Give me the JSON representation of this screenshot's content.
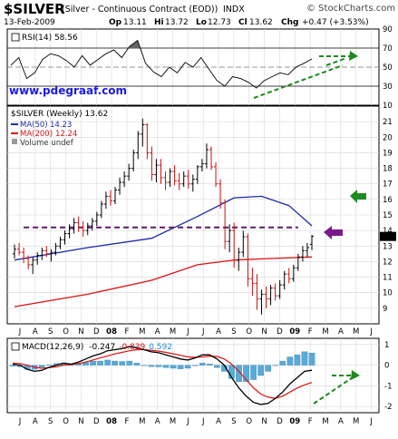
{
  "header": {
    "symbol": "$SILVER",
    "description": "(Silver - Continuous Contract (EOD))",
    "exchange": "INDX",
    "copyright": "© StockCharts.com",
    "date": "13-Feb-2009",
    "op_label": "Op",
    "op": "13.11",
    "hi_label": "Hi",
    "hi": "13.72",
    "lo_label": "Lo",
    "lo": "12.73",
    "cl_label": "Cl",
    "cl": "13.62",
    "chg_label": "Chg",
    "chg": "+0.47 (+3.53%)"
  },
  "watermark": "www.pdegraaf.com",
  "chart_data": [
    {
      "type": "line",
      "title": "RSI(14) 58.56",
      "ylim": [
        10,
        90
      ],
      "y_ticks": [
        "90",
        "70",
        "50",
        "30",
        "10"
      ],
      "reference_lines": [
        70,
        50,
        30
      ],
      "x": [
        "2007-07",
        "2007-07",
        "2007-08",
        "2007-08",
        "2007-09",
        "2007-09",
        "2007-10",
        "2007-10",
        "2007-11",
        "2007-11",
        "2007-12",
        "2007-12",
        "2008-01",
        "2008-01",
        "2008-02",
        "2008-02",
        "2008-03",
        "2008-03",
        "2008-04",
        "2008-04",
        "2008-05",
        "2008-05",
        "2008-06",
        "2008-06",
        "2008-07",
        "2008-07",
        "2008-08",
        "2008-08",
        "2008-09",
        "2008-09",
        "2008-10",
        "2008-10",
        "2008-11",
        "2008-11",
        "2008-12",
        "2008-12",
        "2009-01",
        "2009-01",
        "2009-02"
      ],
      "values": [
        52,
        60,
        38,
        44,
        58,
        64,
        62,
        57,
        50,
        62,
        52,
        58,
        64,
        68,
        60,
        72,
        78,
        54,
        45,
        40,
        50,
        44,
        55,
        50,
        60,
        48,
        36,
        30,
        40,
        38,
        34,
        28,
        36,
        40,
        44,
        42,
        50,
        54,
        58.56
      ]
    },
    {
      "type": "bar",
      "title": "$SILVER (Weekly) 13.62",
      "ylim": [
        8,
        22
      ],
      "y_ticks": [
        "21",
        "20",
        "19",
        "18",
        "17",
        "16",
        "15",
        "14",
        "13",
        "12",
        "11",
        "10",
        "9"
      ],
      "legend": [
        {
          "name": "$SILVER (Weekly)",
          "value": "13.62",
          "color": "#000000"
        },
        {
          "name": "MA(50)",
          "value": "14.23",
          "color": "#1f2aa8"
        },
        {
          "name": "MA(200)",
          "value": "12.24",
          "color": "#dd1111"
        },
        {
          "name": "Volume undef",
          "value": "",
          "color": "#666666"
        }
      ],
      "resistance_line": 14.2,
      "ohlc": [
        [
          12.5,
          13.1,
          12.2,
          12.8
        ],
        [
          12.8,
          13.2,
          12.4,
          12.6
        ],
        [
          12.6,
          12.9,
          11.9,
          12.2
        ],
        [
          12.2,
          12.4,
          11.5,
          11.8
        ],
        [
          11.8,
          12.3,
          11.2,
          12.1
        ],
        [
          12.1,
          12.6,
          11.8,
          12.4
        ],
        [
          12.4,
          12.9,
          12.1,
          12.7
        ],
        [
          12.7,
          13.0,
          12.3,
          12.5
        ],
        [
          12.5,
          12.8,
          12.0,
          12.6
        ],
        [
          12.6,
          13.2,
          12.4,
          13.0
        ],
        [
          13.0,
          13.6,
          12.8,
          13.4
        ],
        [
          13.4,
          14.0,
          13.1,
          13.8
        ],
        [
          13.8,
          14.4,
          13.5,
          14.1
        ],
        [
          14.1,
          14.8,
          13.8,
          14.5
        ],
        [
          14.5,
          14.9,
          13.9,
          14.2
        ],
        [
          14.2,
          14.6,
          13.6,
          14.0
        ],
        [
          14.0,
          14.5,
          13.7,
          14.3
        ],
        [
          14.3,
          14.8,
          14.0,
          14.6
        ],
        [
          14.6,
          15.2,
          14.3,
          15.0
        ],
        [
          15.0,
          15.9,
          14.8,
          15.7
        ],
        [
          15.7,
          16.5,
          15.4,
          16.2
        ],
        [
          16.2,
          16.6,
          15.6,
          15.9
        ],
        [
          15.9,
          16.8,
          15.7,
          16.6
        ],
        [
          16.6,
          17.4,
          16.3,
          17.1
        ],
        [
          17.1,
          17.8,
          16.8,
          17.5
        ],
        [
          17.5,
          18.3,
          17.2,
          18.0
        ],
        [
          18.0,
          19.2,
          17.8,
          19.0
        ],
        [
          19.0,
          20.4,
          18.6,
          20.2
        ],
        [
          20.2,
          21.2,
          19.4,
          20.8
        ],
        [
          20.8,
          20.9,
          18.6,
          19.0
        ],
        [
          19.0,
          19.4,
          17.2,
          17.6
        ],
        [
          17.6,
          18.6,
          17.1,
          18.2
        ],
        [
          18.2,
          18.6,
          17.0,
          17.4
        ],
        [
          17.4,
          17.8,
          16.6,
          17.1
        ],
        [
          17.1,
          18.0,
          16.8,
          17.8
        ],
        [
          17.8,
          18.2,
          16.9,
          17.2
        ],
        [
          17.2,
          17.7,
          16.6,
          17.0
        ],
        [
          17.0,
          17.8,
          16.8,
          17.5
        ],
        [
          17.5,
          17.9,
          16.7,
          17.0
        ],
        [
          17.0,
          17.6,
          16.5,
          17.3
        ],
        [
          17.3,
          18.2,
          17.0,
          18.1
        ],
        [
          18.1,
          18.6,
          17.8,
          18.3
        ],
        [
          18.3,
          19.6,
          18.0,
          19.2
        ],
        [
          19.2,
          19.4,
          17.9,
          18.1
        ],
        [
          18.1,
          18.4,
          16.8,
          17.0
        ],
        [
          17.0,
          17.3,
          15.4,
          15.8
        ],
        [
          15.8,
          16.0,
          12.8,
          13.3
        ],
        [
          13.3,
          14.4,
          12.6,
          14.0
        ],
        [
          14.0,
          14.5,
          11.6,
          12.1
        ],
        [
          12.1,
          12.9,
          11.4,
          12.6
        ],
        [
          12.6,
          14.0,
          12.3,
          13.6
        ],
        [
          13.6,
          13.8,
          10.4,
          10.9
        ],
        [
          10.9,
          11.6,
          9.8,
          10.6
        ],
        [
          10.6,
          11.2,
          8.9,
          9.6
        ],
        [
          9.6,
          10.2,
          8.6,
          9.9
        ],
        [
          9.9,
          10.4,
          9.0,
          9.6
        ],
        [
          9.6,
          10.5,
          9.2,
          10.3
        ],
        [
          10.3,
          10.6,
          9.5,
          9.8
        ],
        [
          9.8,
          10.8,
          9.6,
          10.5
        ],
        [
          10.5,
          11.4,
          10.2,
          11.2
        ],
        [
          11.2,
          11.6,
          10.6,
          10.9
        ],
        [
          10.9,
          11.8,
          10.7,
          11.6
        ],
        [
          11.6,
          12.5,
          11.4,
          12.3
        ],
        [
          12.3,
          13.0,
          12.0,
          12.7
        ],
        [
          12.7,
          13.2,
          12.3,
          12.9
        ],
        [
          13.11,
          13.72,
          12.73,
          13.62
        ]
      ],
      "ma50": [
        [
          0,
          12.1
        ],
        [
          16,
          12.9
        ],
        [
          30,
          13.5
        ],
        [
          40,
          14.9
        ],
        [
          48,
          16.1
        ],
        [
          54,
          16.2
        ],
        [
          60,
          15.6
        ],
        [
          65,
          14.3
        ]
      ],
      "ma200": [
        [
          0,
          9.1
        ],
        [
          16,
          9.9
        ],
        [
          30,
          10.8
        ],
        [
          40,
          11.8
        ],
        [
          48,
          12.1
        ],
        [
          56,
          12.2
        ],
        [
          65,
          12.3
        ]
      ]
    },
    {
      "type": "line",
      "title": "MACD(12,26,9)",
      "title_values": [
        {
          "text": "-0.247",
          "color": "#000000"
        },
        {
          "text": "-0.839",
          "color": "#dd1111"
        },
        {
          "text": "0.592",
          "color": "#2b8ccb"
        }
      ],
      "ylim": [
        -2.3,
        1.3
      ],
      "y_ticks": [
        "1",
        "0",
        "-1",
        "-2"
      ],
      "macd": [
        0.05,
        0.0,
        -0.2,
        -0.3,
        -0.25,
        -0.1,
        0.0,
        0.1,
        0.05,
        0.15,
        0.3,
        0.45,
        0.55,
        0.7,
        0.75,
        0.8,
        0.9,
        0.85,
        0.75,
        0.65,
        0.6,
        0.5,
        0.4,
        0.3,
        0.25,
        0.35,
        0.5,
        0.5,
        0.3,
        0.0,
        -0.6,
        -1.1,
        -1.5,
        -1.8,
        -1.9,
        -1.85,
        -1.6,
        -1.3,
        -0.9,
        -0.6,
        -0.3,
        -0.247
      ],
      "signal": [
        0.1,
        0.08,
        0.0,
        -0.1,
        -0.15,
        -0.12,
        -0.08,
        0.0,
        0.03,
        0.08,
        0.15,
        0.25,
        0.35,
        0.45,
        0.55,
        0.62,
        0.7,
        0.75,
        0.75,
        0.72,
        0.68,
        0.62,
        0.55,
        0.48,
        0.4,
        0.38,
        0.4,
        0.44,
        0.42,
        0.3,
        0.05,
        -0.3,
        -0.7,
        -1.1,
        -1.4,
        -1.55,
        -1.6,
        -1.5,
        -1.3,
        -1.1,
        -0.95,
        -0.839
      ],
      "histogram": [
        -0.05,
        -0.08,
        -0.2,
        -0.2,
        -0.1,
        0.02,
        0.08,
        0.1,
        0.02,
        0.07,
        0.15,
        0.2,
        0.2,
        0.25,
        0.2,
        0.18,
        0.2,
        0.1,
        0.0,
        -0.07,
        -0.08,
        -0.12,
        -0.15,
        -0.18,
        -0.15,
        -0.03,
        0.1,
        0.06,
        -0.12,
        -0.3,
        -0.65,
        -0.8,
        -0.8,
        -0.7,
        -0.5,
        -0.3,
        0.0,
        0.2,
        0.4,
        0.5,
        0.65,
        0.592
      ]
    }
  ],
  "x_axis_labels": [
    "J",
    "A",
    "S",
    "O",
    "N",
    "D",
    "08",
    "F",
    "M",
    "A",
    "M",
    "J",
    "J",
    "A",
    "S",
    "O",
    "N",
    "D",
    "09",
    "F",
    "M",
    "A",
    "M",
    "J"
  ],
  "annotation_colors": {
    "green": "#1f8a1f",
    "purple": "#7a1a8a",
    "price_box": "#000000"
  }
}
